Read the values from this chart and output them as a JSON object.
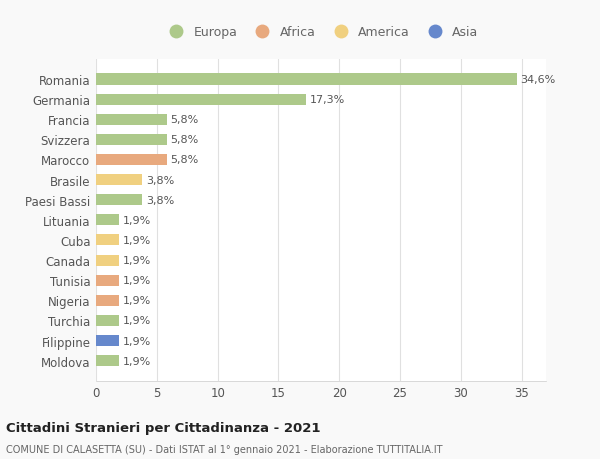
{
  "countries": [
    "Romania",
    "Germania",
    "Francia",
    "Svizzera",
    "Marocco",
    "Brasile",
    "Paesi Bassi",
    "Lituania",
    "Cuba",
    "Canada",
    "Tunisia",
    "Nigeria",
    "Turchia",
    "Filippine",
    "Moldova"
  ],
  "values": [
    34.6,
    17.3,
    5.8,
    5.8,
    5.8,
    3.8,
    3.8,
    1.9,
    1.9,
    1.9,
    1.9,
    1.9,
    1.9,
    1.9,
    1.9
  ],
  "labels": [
    "34,6%",
    "17,3%",
    "5,8%",
    "5,8%",
    "5,8%",
    "3,8%",
    "3,8%",
    "1,9%",
    "1,9%",
    "1,9%",
    "1,9%",
    "1,9%",
    "1,9%",
    "1,9%",
    "1,9%"
  ],
  "continents": [
    "Europa",
    "Europa",
    "Europa",
    "Europa",
    "Africa",
    "America",
    "Europa",
    "Europa",
    "America",
    "America",
    "Africa",
    "Africa",
    "Europa",
    "Asia",
    "Europa"
  ],
  "colors": {
    "Europa": "#adc98a",
    "Africa": "#e8a97e",
    "America": "#f0d080",
    "Asia": "#6688cc"
  },
  "legend_order": [
    "Europa",
    "Africa",
    "America",
    "Asia"
  ],
  "legend_colors": [
    "#adc98a",
    "#e8a97e",
    "#f0d080",
    "#6688cc"
  ],
  "title": "Cittadini Stranieri per Cittadinanza - 2021",
  "subtitle": "COMUNE DI CALASETTA (SU) - Dati ISTAT al 1° gennaio 2021 - Elaborazione TUTTITALIA.IT",
  "xlim": [
    0,
    37
  ],
  "xticks": [
    0,
    5,
    10,
    15,
    20,
    25,
    30,
    35
  ],
  "plot_bg": "#ffffff",
  "fig_bg": "#f9f9f9",
  "grid_color": "#e0e0e0"
}
